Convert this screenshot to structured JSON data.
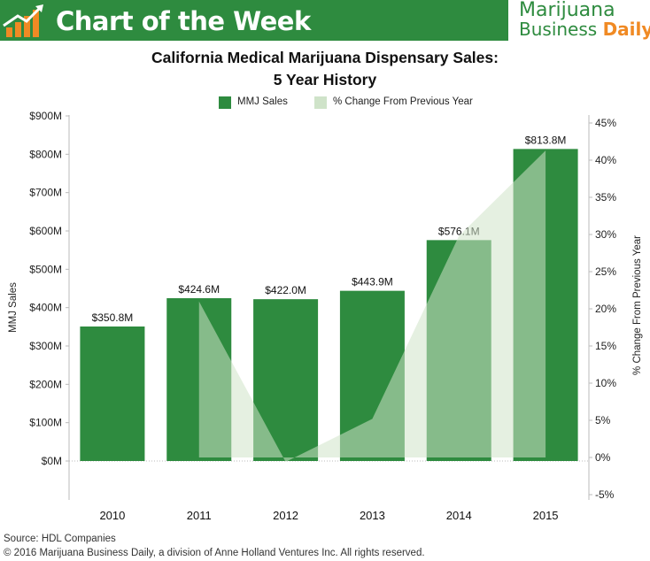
{
  "header": {
    "banner_title": "Chart of the Week",
    "brand_line1": "Marijuana",
    "brand_line2_a": "Business ",
    "brand_line2_b": "Daily",
    "logo_icon": "bar-growth-arrow-icon"
  },
  "colors": {
    "banner": "#2e8b3f",
    "bar": "#2e8b3f",
    "area": "#cfe3c9",
    "accent_orange": "#f08a24"
  },
  "chart_data": {
    "type": "bar",
    "title": "California Medical Marijuana Dispensary Sales:",
    "subtitle": "5 Year History",
    "categories": [
      "2010",
      "2011",
      "2012",
      "2013",
      "2014",
      "2015"
    ],
    "series": [
      {
        "name": "MMJ Sales",
        "type": "bar",
        "axis": "left",
        "values": [
          350.8,
          424.6,
          422.0,
          443.9,
          576.1,
          813.8
        ],
        "labels": [
          "$350.8M",
          "$424.6M",
          "$422.0M",
          "$443.9M",
          "$576.1M",
          "$813.8M"
        ]
      },
      {
        "name": "% Change From Previous Year",
        "type": "area",
        "axis": "right",
        "values": [
          null,
          21.0,
          -0.6,
          5.2,
          29.8,
          41.3
        ]
      }
    ],
    "ylabel": "MMJ Sales",
    "y2label": "% Change From Previous Year",
    "ylim": [
      0,
      900
    ],
    "y2lim": [
      -5,
      45
    ],
    "y_ticks": [
      "$0M",
      "$100M",
      "$200M",
      "$300M",
      "$400M",
      "$500M",
      "$600M",
      "$700M",
      "$800M",
      "$900M"
    ],
    "y2_ticks": [
      "-5%",
      "0%",
      "5%",
      "10%",
      "15%",
      "20%",
      "25%",
      "30%",
      "35%",
      "40%",
      "45%"
    ],
    "grid": false,
    "legend": "top-center"
  },
  "footer": {
    "source": "Source: HDL Companies",
    "copyright": "© 2016 Marijuana Business Daily, a division of Anne Holland Ventures Inc. All rights reserved."
  }
}
